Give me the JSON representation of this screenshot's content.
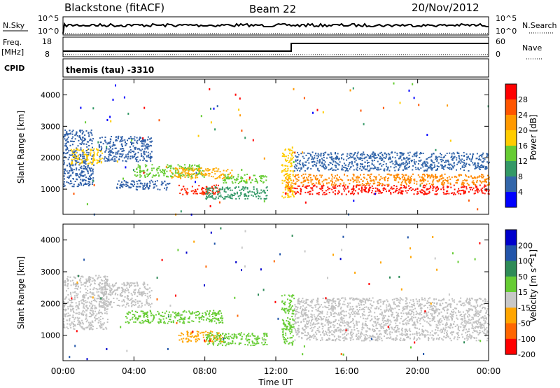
{
  "header": {
    "station": "Blackstone (fitACF)",
    "beam": "Beam 22",
    "date": "20/Nov/2012"
  },
  "top_panels": {
    "nsky_label": "N.Sky",
    "nsearch_label": "N.Search",
    "count_hi": "10^5",
    "count_lo": "10^0",
    "freq_label_1": "Freq.",
    "freq_label_2": "[MHz]",
    "freq_ticks": [
      "18",
      "8"
    ],
    "nave_label": "Nave",
    "nave_ticks": [
      "60",
      "0"
    ],
    "cpid_label": "CPID",
    "cpid_value": "themis (tau) -3310"
  },
  "chart_data": [
    {
      "type": "heatmap",
      "name": "power",
      "ylabel": "Slant Range [km]",
      "yticks": [
        1000,
        2000,
        3000,
        4000
      ],
      "ylim": [
        200,
        4500
      ],
      "xlim": [
        0,
        24
      ],
      "colorbar_label": "Power [dB]",
      "colorbar_ticks": [
        "28",
        "24",
        "20",
        "16",
        "12",
        "8",
        "4"
      ],
      "colors": [
        "#ff0000",
        "#ff5500",
        "#ff9900",
        "#ffcc00",
        "#66cc33",
        "#339966",
        "#3366aa",
        "#0000ff"
      ],
      "bands": [
        {
          "x": [
            0.0,
            1.7
          ],
          "y": [
            1100,
            2900
          ],
          "c": "#2f5fa8"
        },
        {
          "x": [
            0.4,
            2.2
          ],
          "y": [
            1800,
            2300
          ],
          "c": "#ffcc00"
        },
        {
          "x": [
            2.0,
            5.0
          ],
          "y": [
            1900,
            2700
          ],
          "c": "#2f5fa8"
        },
        {
          "x": [
            4.0,
            8.0
          ],
          "y": [
            1400,
            1800
          ],
          "c": "#66cc33"
        },
        {
          "x": [
            6.0,
            9.5
          ],
          "y": [
            1350,
            1700
          ],
          "c": "#ffaa00"
        },
        {
          "x": [
            6.5,
            8.8
          ],
          "y": [
            850,
            1150
          ],
          "c": "#ff2200"
        },
        {
          "x": [
            3.0,
            6.0
          ],
          "y": [
            1000,
            1300
          ],
          "c": "#2f5fa8"
        },
        {
          "x": [
            8.0,
            11.5
          ],
          "y": [
            700,
            1100
          ],
          "c": "#339966"
        },
        {
          "x": [
            9.0,
            11.5
          ],
          "y": [
            1200,
            1500
          ],
          "c": "#66cc33"
        },
        {
          "x": [
            12.5,
            24.0
          ],
          "y": [
            850,
            1150
          ],
          "c": "#ff1100"
        },
        {
          "x": [
            12.5,
            24.0
          ],
          "y": [
            1150,
            1500
          ],
          "c": "#ff8800"
        },
        {
          "x": [
            13.0,
            24.0
          ],
          "y": [
            1600,
            2200
          ],
          "c": "#3366aa"
        },
        {
          "x": [
            12.3,
            13.0
          ],
          "y": [
            700,
            2300
          ],
          "c": "#ffcc00"
        }
      ]
    },
    {
      "type": "heatmap",
      "name": "velocity",
      "ylabel": "Slant Range [km]",
      "yticks": [
        1000,
        2000,
        3000,
        4000
      ],
      "ylim": [
        200,
        4500
      ],
      "xlim": [
        0,
        24
      ],
      "xlabel": "Time UT",
      "xticks": [
        "00:00",
        "04:00",
        "08:00",
        "12:00",
        "16:00",
        "20:00",
        "00:00"
      ],
      "colorbar_label": "Velocity [m s^-1]",
      "colorbar_ticks": [
        "200",
        "100",
        "50",
        "15",
        "-15",
        "-50",
        "-100",
        "-200"
      ],
      "colors": [
        "#0000cc",
        "#2255aa",
        "#2e8b57",
        "#66cc33",
        "#c8c8c8",
        "#ffa500",
        "#ff6600",
        "#ff0000"
      ],
      "bands": [
        {
          "x": [
            0.0,
            2.5
          ],
          "y": [
            1200,
            2900
          ],
          "c": "#c0c0c0"
        },
        {
          "x": [
            2.0,
            5.0
          ],
          "y": [
            1900,
            2700
          ],
          "c": "#c0c0c0"
        },
        {
          "x": [
            3.5,
            9.0
          ],
          "y": [
            1400,
            1800
          ],
          "c": "#66cc33"
        },
        {
          "x": [
            6.5,
            9.0
          ],
          "y": [
            800,
            1150
          ],
          "c": "#ffa500"
        },
        {
          "x": [
            8.0,
            11.5
          ],
          "y": [
            700,
            1100
          ],
          "c": "#66cc33"
        },
        {
          "x": [
            12.3,
            13.0
          ],
          "y": [
            700,
            2300
          ],
          "c": "#66cc33"
        },
        {
          "x": [
            13.0,
            24.0
          ],
          "y": [
            850,
            2200
          ],
          "c": "#c0c0c0"
        }
      ]
    }
  ]
}
